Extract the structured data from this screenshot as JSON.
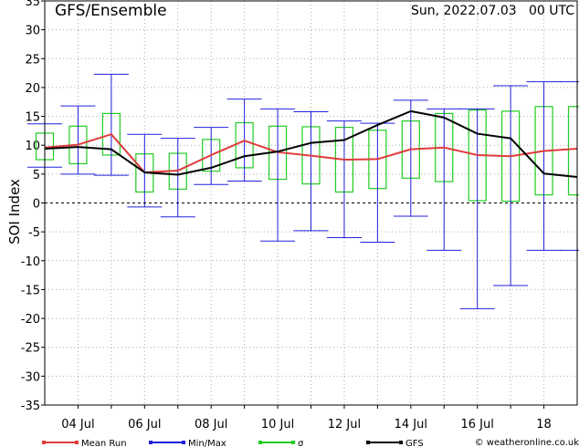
{
  "chart_data": {
    "type": "line",
    "title": "GFS/Ensemble",
    "date_label": "Sun, 2022.07.03   00 UTC",
    "ylabel": "SOI Index",
    "ylim": [
      -35,
      35
    ],
    "yticks": [
      35,
      30,
      25,
      20,
      15,
      10,
      5,
      0,
      -5,
      -10,
      -15,
      -20,
      -25,
      -30,
      -35
    ],
    "xlim": [
      0,
      8.0
    ],
    "xticks": [
      {
        "x": 0.5,
        "label": "04 Jul"
      },
      {
        "x": 1.5,
        "label": "06 Jul"
      },
      {
        "x": 2.5,
        "label": "08 Jul"
      },
      {
        "x": 3.5,
        "label": "10 Jul"
      },
      {
        "x": 4.5,
        "label": "12 Jul"
      },
      {
        "x": 5.5,
        "label": "14 Jul"
      },
      {
        "x": 6.5,
        "label": "16 Jul"
      },
      {
        "x": 7.5,
        "label": "18"
      }
    ],
    "x": [
      0.0,
      0.5,
      1.0,
      1.5,
      2.0,
      2.5,
      3.0,
      3.5,
      4.0,
      4.5,
      5.0,
      5.5,
      6.0,
      6.5,
      7.0,
      7.5,
      8.0
    ],
    "series": [
      {
        "name": "Mean Run",
        "color": "#e03c3c",
        "values": [
          9.6,
          10.1,
          11.9,
          5.3,
          5.6,
          8.3,
          10.8,
          8.8,
          8.2,
          7.5,
          7.6,
          9.3,
          9.6,
          8.3,
          8.1,
          9.0,
          9.4
        ]
      },
      {
        "name": "Min/Max",
        "color": "#2020dd",
        "min": [
          6.2,
          5.0,
          4.8,
          -0.7,
          -2.4,
          3.2,
          3.8,
          -6.6,
          -4.8,
          -6.0,
          -6.8,
          -2.3,
          -8.2,
          -18.3,
          -14.3,
          -8.2,
          -8.2
        ],
        "max": [
          13.7,
          16.8,
          22.3,
          11.9,
          11.2,
          13.1,
          18.0,
          16.3,
          15.8,
          14.2,
          13.8,
          17.8,
          16.3,
          16.3,
          20.3,
          21.0,
          21.0
        ]
      },
      {
        "name": "σ",
        "color": "#22cc22",
        "low": [
          7.5,
          6.8,
          8.3,
          1.9,
          2.4,
          5.5,
          6.1,
          4.1,
          3.3,
          1.9,
          2.5,
          4.3,
          3.7,
          0.4,
          0.3,
          1.4,
          1.4
        ],
        "high": [
          12.1,
          13.3,
          15.5,
          8.5,
          8.6,
          11.0,
          13.9,
          13.3,
          13.2,
          13.1,
          12.6,
          14.2,
          15.5,
          16.1,
          15.9,
          16.7,
          16.7
        ]
      },
      {
        "name": "GFS",
        "color": "#000000",
        "values": [
          9.4,
          9.7,
          9.3,
          5.3,
          4.9,
          6.1,
          8.1,
          8.9,
          10.4,
          10.9,
          13.5,
          15.9,
          14.8,
          12.0,
          11.2,
          5.1,
          4.5
        ]
      }
    ],
    "credit": "© weatheronline.co.uk",
    "grid": true,
    "legend_position": "bottom"
  }
}
